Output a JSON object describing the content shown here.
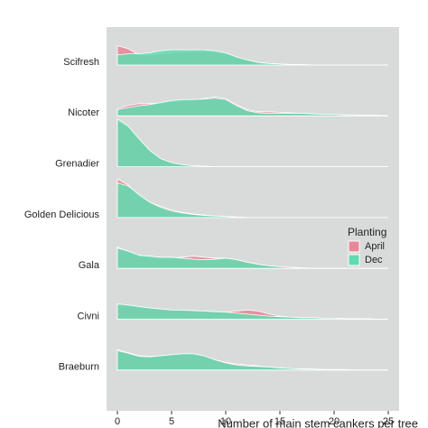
{
  "chart_data": {
    "type": "ridgeline",
    "categories": [
      "Scifresh",
      "Nicoter",
      "Grenadier",
      "Golden Delicious",
      "Gala",
      "Civni",
      "Braeburn"
    ],
    "x": [
      0,
      1,
      2,
      3,
      4,
      5,
      6,
      7,
      8,
      9,
      10,
      11,
      12,
      13,
      14,
      15,
      16,
      17,
      18,
      19,
      20,
      21,
      22,
      23,
      24,
      25
    ],
    "series": [
      {
        "name": "April",
        "color": "#e8899a",
        "values": [
          [
            0.38,
            0.32,
            0.2,
            0.2,
            0.22,
            0.24,
            0.26,
            0.27,
            0.27,
            0.26,
            0.22,
            0.15,
            0.09,
            0.05,
            0.03,
            0.02,
            0.01,
            0.01,
            0,
            0,
            0,
            0,
            0,
            0,
            0,
            0
          ],
          [
            0.14,
            0.2,
            0.24,
            0.24,
            0.25,
            0.28,
            0.3,
            0.31,
            0.34,
            0.37,
            0.34,
            0.22,
            0.12,
            0.08,
            0.08,
            0.07,
            0.06,
            0.05,
            0.04,
            0.03,
            0.02,
            0.02,
            0.01,
            0.01,
            0.01,
            0
          ],
          [
            0.9,
            0.78,
            0.54,
            0.3,
            0.15,
            0.08,
            0.04,
            0.02,
            0.01,
            0,
            0,
            0,
            0,
            0,
            0,
            0,
            0,
            0,
            0,
            0,
            0,
            0,
            0,
            0,
            0,
            0
          ],
          [
            0.76,
            0.64,
            0.42,
            0.3,
            0.22,
            0.15,
            0.1,
            0.07,
            0.05,
            0.03,
            0.02,
            0.01,
            0,
            0,
            0,
            0,
            0,
            0,
            0,
            0,
            0,
            0,
            0,
            0,
            0,
            0
          ],
          [
            0.42,
            0.32,
            0.24,
            0.22,
            0.2,
            0.2,
            0.22,
            0.24,
            0.22,
            0.2,
            0.2,
            0.17,
            0.12,
            0.08,
            0.05,
            0.03,
            0.02,
            0.01,
            0,
            0,
            0,
            0,
            0,
            0,
            0,
            0
          ],
          [
            0.28,
            0.26,
            0.24,
            0.22,
            0.2,
            0.18,
            0.17,
            0.16,
            0.15,
            0.14,
            0.14,
            0.16,
            0.18,
            0.16,
            0.1,
            0.06,
            0.04,
            0.03,
            0.03,
            0.02,
            0.02,
            0.01,
            0.01,
            0.01,
            0,
            0
          ],
          [
            0.4,
            0.34,
            0.28,
            0.27,
            0.28,
            0.3,
            0.31,
            0.31,
            0.27,
            0.2,
            0.15,
            0.12,
            0.1,
            0.08,
            0.06,
            0.04,
            0.03,
            0.02,
            0.02,
            0.01,
            0.01,
            0.01,
            0,
            0,
            0,
            0
          ]
        ]
      },
      {
        "name": "Dec",
        "color": "#5fdcb0",
        "values": [
          [
            0.2,
            0.22,
            0.22,
            0.24,
            0.28,
            0.3,
            0.3,
            0.3,
            0.3,
            0.28,
            0.24,
            0.16,
            0.1,
            0.05,
            0.03,
            0.02,
            0.01,
            0.01,
            0,
            0,
            0,
            0,
            0,
            0,
            0,
            0
          ],
          [
            0.12,
            0.16,
            0.2,
            0.22,
            0.26,
            0.3,
            0.32,
            0.32,
            0.33,
            0.35,
            0.32,
            0.2,
            0.1,
            0.06,
            0.05,
            0.05,
            0.05,
            0.05,
            0.04,
            0.03,
            0.03,
            0.02,
            0.02,
            0.01,
            0.01,
            0
          ],
          [
            0.94,
            0.8,
            0.55,
            0.32,
            0.16,
            0.08,
            0.04,
            0.02,
            0.01,
            0,
            0,
            0,
            0,
            0,
            0,
            0,
            0,
            0,
            0,
            0,
            0,
            0,
            0,
            0,
            0,
            0
          ],
          [
            0.68,
            0.62,
            0.45,
            0.3,
            0.2,
            0.13,
            0.09,
            0.06,
            0.04,
            0.03,
            0.02,
            0.01,
            0,
            0,
            0,
            0,
            0,
            0,
            0,
            0,
            0,
            0,
            0,
            0,
            0,
            0
          ],
          [
            0.4,
            0.34,
            0.26,
            0.24,
            0.22,
            0.22,
            0.2,
            0.18,
            0.17,
            0.18,
            0.2,
            0.17,
            0.12,
            0.08,
            0.05,
            0.03,
            0.02,
            0.01,
            0,
            0,
            0,
            0,
            0,
            0,
            0,
            0
          ],
          [
            0.3,
            0.28,
            0.25,
            0.22,
            0.2,
            0.18,
            0.18,
            0.17,
            0.16,
            0.15,
            0.14,
            0.12,
            0.1,
            0.08,
            0.06,
            0.05,
            0.04,
            0.03,
            0.03,
            0.02,
            0.02,
            0.01,
            0.01,
            0.01,
            0,
            0
          ],
          [
            0.38,
            0.33,
            0.27,
            0.26,
            0.28,
            0.3,
            0.32,
            0.32,
            0.28,
            0.2,
            0.14,
            0.1,
            0.08,
            0.07,
            0.06,
            0.04,
            0.03,
            0.02,
            0.02,
            0.01,
            0.01,
            0.01,
            0,
            0,
            0,
            0
          ]
        ]
      }
    ],
    "xlabel": "Number of main stem cankers per tree",
    "legend_title": "Planting",
    "xlim": [
      -1,
      26
    ],
    "xticks": [
      0,
      5,
      10,
      15,
      20,
      25
    ]
  }
}
